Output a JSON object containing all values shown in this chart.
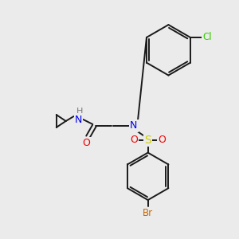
{
  "background_color": "#ebebeb",
  "bond_color": "#1a1a1a",
  "atom_colors": {
    "N": "#0000ee",
    "O": "#ee0000",
    "S": "#cccc00",
    "Cl": "#33cc00",
    "Br": "#cc6600",
    "H": "#777777"
  },
  "figsize": [
    3.0,
    3.0
  ],
  "dpi": 100
}
